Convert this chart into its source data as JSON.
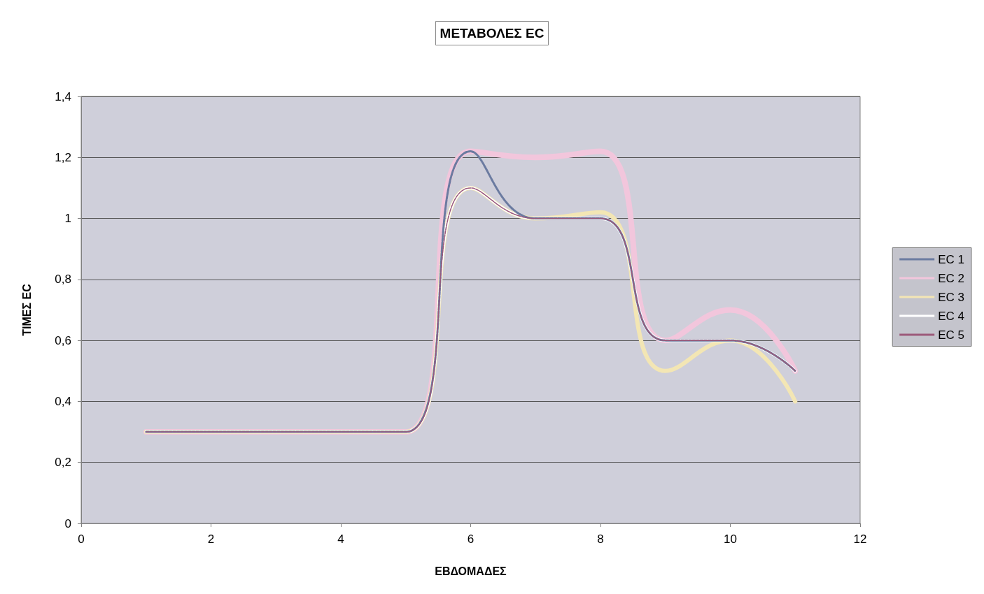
{
  "chart_data": {
    "type": "line",
    "title": "ΜΕΤΑΒΟΛΕΣ EC",
    "xlabel": "ΕΒΔΟΜΑΔΕΣ",
    "ylabel": "ΤΙΜΕΣ EC",
    "x": [
      1,
      2,
      3,
      4,
      5,
      6,
      7,
      8,
      9,
      10,
      11
    ],
    "series": [
      {
        "name": "EC 1",
        "color": "#6b7ba0",
        "line_style": "dashed",
        "values": [
          0.3,
          0.3,
          0.3,
          0.3,
          0.3,
          1.22,
          1.0,
          1.0,
          0.6,
          0.6,
          0.5
        ]
      },
      {
        "name": "EC 2",
        "color": "#f2c6dc",
        "values": [
          0.3,
          0.3,
          0.3,
          0.3,
          0.3,
          1.22,
          1.2,
          1.22,
          0.6,
          0.7,
          0.5
        ]
      },
      {
        "name": "EC 3",
        "color": "#f3e6b4",
        "values": [
          0.3,
          0.3,
          0.3,
          0.3,
          0.3,
          1.1,
          1.0,
          1.02,
          0.5,
          0.6,
          0.4
        ]
      },
      {
        "name": "EC 4",
        "color": "#ffffff",
        "values": [
          0.3,
          0.3,
          0.3,
          0.3,
          0.3,
          1.1,
          1.0,
          1.0,
          0.6,
          0.6,
          0.5
        ]
      },
      {
        "name": "EC 5",
        "color": "#9c5a7a",
        "line_style": "dashed",
        "values": [
          0.3,
          0.3,
          0.3,
          0.3,
          0.3,
          1.1,
          1.0,
          1.0,
          0.6,
          0.6,
          0.5
        ]
      }
    ],
    "xlim": [
      0,
      12
    ],
    "xticks": [
      0,
      2,
      4,
      6,
      8,
      10,
      12
    ],
    "ylim": [
      0,
      1.4
    ],
    "yticks": [
      0,
      {
        "value": 0.2,
        "label": "0,2"
      },
      {
        "value": 0.4,
        "label": "0,4"
      },
      {
        "value": 0.6,
        "label": "0,6"
      },
      {
        "value": 0.8,
        "label": "0,8"
      },
      1,
      {
        "value": 1.2,
        "label": "1,2"
      },
      {
        "value": 1.4,
        "label": "1,4"
      }
    ],
    "grid": "y",
    "legend": "right",
    "marker": "none",
    "line_style": "solid"
  }
}
